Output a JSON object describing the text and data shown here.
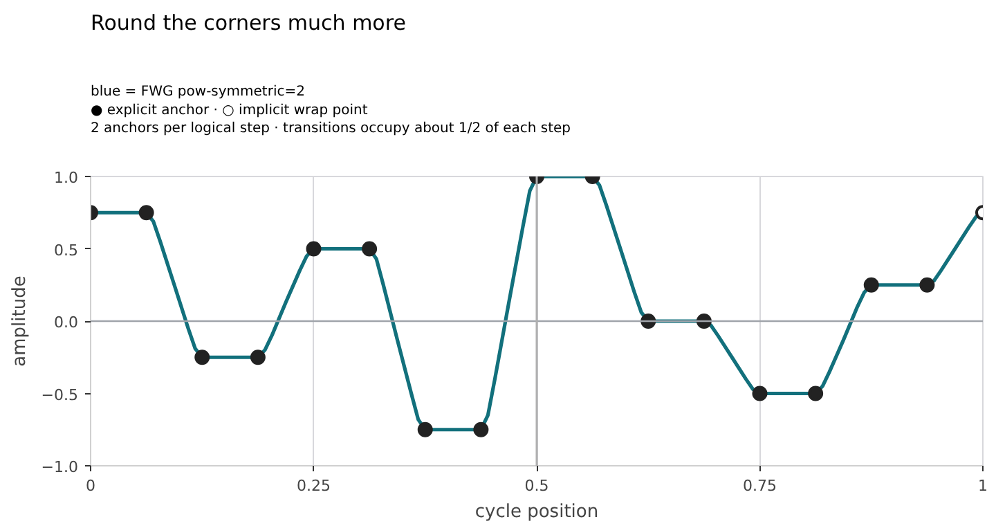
{
  "chart_data": {
    "type": "line",
    "title": "Round the corners much more",
    "subtitle": "blue = FWG pow-symmetric=2\n● explicit anchor · ○ implicit wrap point\n2 anchors per logical step · transitions occupy about 1/2 of each step",
    "xlabel": "cycle position",
    "ylabel": "amplitude",
    "xlim": [
      0,
      1
    ],
    "ylim": [
      -1,
      1
    ],
    "xticks": [
      0,
      0.25,
      0.5,
      0.75,
      1
    ],
    "yticks": [
      {
        "value": -1,
        "label": "−1.0"
      },
      {
        "value": -0.5,
        "label": "−0.5"
      },
      {
        "value": 0,
        "label": "0.0"
      },
      {
        "value": 0.5,
        "label": "0.5"
      },
      {
        "value": 1,
        "label": "1.0"
      }
    ],
    "grid": "x",
    "ref_lines": [
      {
        "axis": "y",
        "value": 0,
        "color": "#a0a4aa"
      },
      {
        "axis": "x",
        "value": 0.5,
        "color": "#b0b0b0"
      }
    ],
    "series": [
      {
        "color": "#12707c",
        "marker": "none",
        "line_style": "solid",
        "x": [
          0,
          0.0625,
          0.0703,
          0.0781,
          0.0938,
          0.1094,
          0.1172,
          0.125,
          0.1875,
          0.1953,
          0.2031,
          0.2188,
          0.2344,
          0.2422,
          0.25,
          0.3125,
          0.3203,
          0.3281,
          0.3438,
          0.3594,
          0.3672,
          0.375,
          0.4375,
          0.4453,
          0.4531,
          0.4688,
          0.4844,
          0.4922,
          0.5,
          0.5625,
          0.5703,
          0.5781,
          0.5938,
          0.6094,
          0.6172,
          0.625,
          0.6875,
          0.6953,
          0.7031,
          0.7188,
          0.7344,
          0.7422,
          0.75,
          0.8125,
          0.8203,
          0.8281,
          0.8438,
          0.8594,
          0.8672,
          0.875,
          0.9375,
          0.9453,
          0.9531,
          0.9688,
          0.9844,
          0.9922,
          1
        ],
        "values": [
          0.75,
          0.75,
          0.69,
          0.55,
          0.25,
          -0.05,
          -0.19,
          -0.25,
          -0.25,
          -0.2,
          -0.1,
          0.13,
          0.35,
          0.45,
          0.5,
          0.5,
          0.43,
          0.25,
          -0.13,
          -0.5,
          -0.68,
          -0.75,
          -0.75,
          -0.65,
          -0.4,
          0.13,
          0.65,
          0.9,
          1,
          1,
          0.94,
          0.8,
          0.5,
          0.2,
          0.06,
          0,
          0,
          -0.03,
          -0.1,
          -0.25,
          -0.4,
          -0.47,
          -0.5,
          -0.5,
          -0.45,
          -0.35,
          -0.13,
          0.1,
          0.2,
          0.25,
          0.25,
          0.28,
          0.35,
          0.5,
          0.65,
          0.72,
          0.75
        ]
      },
      {
        "type": "scatter",
        "color": "#222222",
        "marker": "circle",
        "x": [
          0,
          0.0625,
          0.125,
          0.1875,
          0.25,
          0.3125,
          0.375,
          0.4375,
          0.5,
          0.5625,
          0.625,
          0.6875,
          0.75,
          0.8125,
          0.875,
          0.9375
        ],
        "values": [
          0.75,
          0.75,
          -0.25,
          -0.25,
          0.5,
          0.5,
          -0.75,
          -0.75,
          1,
          1,
          0,
          0,
          -0.5,
          -0.5,
          0.25,
          0.25
        ]
      },
      {
        "type": "scatter",
        "color": "#ffffff",
        "marker": "circle",
        "x": [
          1
        ],
        "values": [
          0.75
        ]
      }
    ]
  }
}
